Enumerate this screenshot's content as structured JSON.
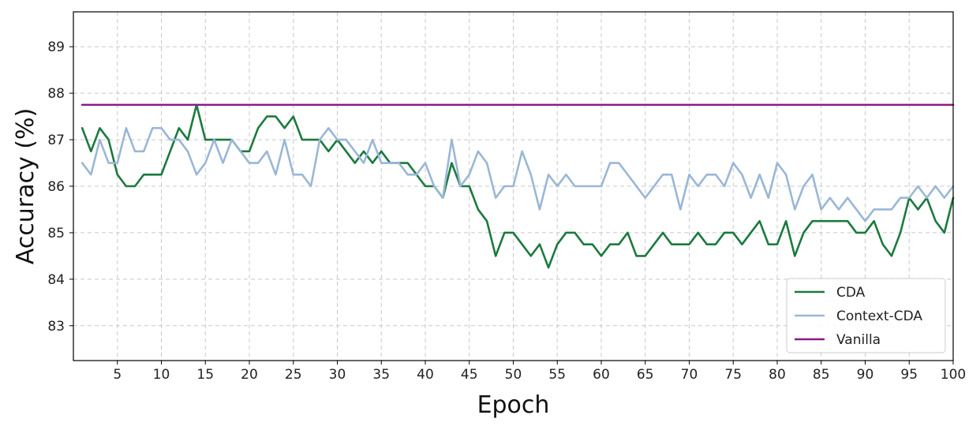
{
  "chart_data": {
    "type": "line",
    "xlabel": "Epoch",
    "ylabel": "Accuracy (%)",
    "xlim": [
      0,
      100
    ],
    "ylim": [
      82.25,
      89.75
    ],
    "xticks": [
      5,
      10,
      15,
      20,
      25,
      30,
      35,
      40,
      45,
      50,
      55,
      60,
      65,
      70,
      75,
      80,
      85,
      90,
      95,
      100
    ],
    "yticks": [
      83,
      84,
      85,
      86,
      87,
      88,
      89
    ],
    "grid": true,
    "legend_position": "lower-right",
    "x": [
      1,
      2,
      3,
      4,
      5,
      6,
      7,
      8,
      9,
      10,
      11,
      12,
      13,
      14,
      15,
      16,
      17,
      18,
      19,
      20,
      21,
      22,
      23,
      24,
      25,
      26,
      27,
      28,
      29,
      30,
      31,
      32,
      33,
      34,
      35,
      36,
      37,
      38,
      39,
      40,
      41,
      42,
      43,
      44,
      45,
      46,
      47,
      48,
      49,
      50,
      51,
      52,
      53,
      54,
      55,
      56,
      57,
      58,
      59,
      60,
      61,
      62,
      63,
      64,
      65,
      66,
      67,
      68,
      69,
      70,
      71,
      72,
      73,
      74,
      75,
      76,
      77,
      78,
      79,
      80,
      81,
      82,
      83,
      84,
      85,
      86,
      87,
      88,
      89,
      90,
      91,
      92,
      93,
      94,
      95,
      96,
      97,
      98,
      99,
      100
    ],
    "series": [
      {
        "name": "CDA",
        "color": "#1b7a3e",
        "values": [
          87.25,
          86.75,
          87.25,
          87.0,
          86.25,
          86.0,
          86.0,
          86.25,
          86.25,
          86.25,
          86.75,
          87.25,
          87.0,
          87.75,
          87.0,
          87.0,
          87.0,
          87.0,
          86.75,
          86.75,
          87.25,
          87.5,
          87.5,
          87.25,
          87.5,
          87.0,
          87.0,
          87.0,
          86.75,
          87.0,
          86.75,
          86.5,
          86.75,
          86.5,
          86.75,
          86.5,
          86.5,
          86.5,
          86.25,
          86.0,
          86.0,
          85.75,
          86.5,
          86.0,
          86.0,
          85.5,
          85.25,
          84.5,
          85.0,
          85.0,
          84.75,
          84.5,
          84.75,
          84.25,
          84.75,
          85.0,
          85.0,
          84.75,
          84.75,
          84.5,
          84.75,
          84.75,
          85.0,
          84.5,
          84.5,
          84.75,
          85.0,
          84.75,
          84.75,
          84.75,
          85.0,
          84.75,
          84.75,
          85.0,
          85.0,
          84.75,
          85.0,
          85.25,
          84.75,
          84.75,
          85.25,
          84.5,
          85.0,
          85.25,
          85.25,
          85.25,
          85.25,
          85.25,
          85.0,
          85.0,
          85.25,
          84.75,
          84.5,
          85.0,
          85.75,
          85.5,
          85.75,
          85.25,
          85.0,
          85.75
        ]
      },
      {
        "name": "Context-CDA",
        "color": "#9ab7d6",
        "values": [
          86.5,
          86.25,
          87.0,
          86.5,
          86.5,
          87.25,
          86.75,
          86.75,
          87.25,
          87.25,
          87.0,
          87.0,
          86.75,
          86.25,
          86.5,
          87.0,
          86.5,
          87.0,
          86.75,
          86.5,
          86.5,
          86.75,
          86.25,
          87.0,
          86.25,
          86.25,
          86.0,
          87.0,
          87.25,
          87.0,
          87.0,
          86.75,
          86.5,
          87.0,
          86.5,
          86.5,
          86.5,
          86.25,
          86.25,
          86.5,
          86.0,
          85.75,
          87.0,
          86.0,
          86.25,
          86.75,
          86.5,
          85.75,
          86.0,
          86.0,
          86.75,
          86.25,
          85.5,
          86.25,
          86.0,
          86.25,
          86.0,
          86.0,
          86.0,
          86.0,
          86.5,
          86.5,
          86.25,
          86.0,
          85.75,
          86.0,
          86.25,
          86.25,
          85.5,
          86.25,
          86.0,
          86.25,
          86.25,
          86.0,
          86.5,
          86.25,
          85.75,
          86.25,
          85.75,
          86.5,
          86.25,
          85.5,
          86.0,
          86.25,
          85.5,
          85.75,
          85.5,
          85.75,
          85.5,
          85.25,
          85.5,
          85.5,
          85.5,
          85.75,
          85.75,
          86.0,
          85.75,
          86.0,
          85.75,
          86.0
        ]
      },
      {
        "name": "Vanilla",
        "color": "#8b1a89",
        "values": [
          87.75,
          87.75,
          87.75,
          87.75,
          87.75,
          87.75,
          87.75,
          87.75,
          87.75,
          87.75,
          87.75,
          87.75,
          87.75,
          87.75,
          87.75,
          87.75,
          87.75,
          87.75,
          87.75,
          87.75,
          87.75,
          87.75,
          87.75,
          87.75,
          87.75,
          87.75,
          87.75,
          87.75,
          87.75,
          87.75,
          87.75,
          87.75,
          87.75,
          87.75,
          87.75,
          87.75,
          87.75,
          87.75,
          87.75,
          87.75,
          87.75,
          87.75,
          87.75,
          87.75,
          87.75,
          87.75,
          87.75,
          87.75,
          87.75,
          87.75,
          87.75,
          87.75,
          87.75,
          87.75,
          87.75,
          87.75,
          87.75,
          87.75,
          87.75,
          87.75,
          87.75,
          87.75,
          87.75,
          87.75,
          87.75,
          87.75,
          87.75,
          87.75,
          87.75,
          87.75,
          87.75,
          87.75,
          87.75,
          87.75,
          87.75,
          87.75,
          87.75,
          87.75,
          87.75,
          87.75,
          87.75,
          87.75,
          87.75,
          87.75,
          87.75,
          87.75,
          87.75,
          87.75,
          87.75,
          87.75,
          87.75,
          87.75,
          87.75,
          87.75,
          87.75,
          87.75,
          87.75,
          87.75,
          87.75,
          87.75
        ]
      }
    ]
  }
}
